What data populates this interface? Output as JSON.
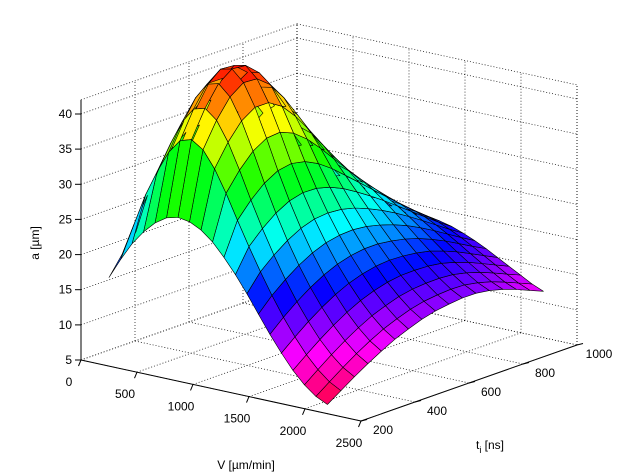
{
  "chart_data": {
    "type": "surface",
    "title": "",
    "xlabel": "V [µm/min]",
    "ylabel_main": "t",
    "ylabel_sub": "i",
    "ylabel_unit": " [ns]",
    "zlabel": "a [µm]",
    "xlim": [
      0,
      2500
    ],
    "ylim": [
      200,
      1000
    ],
    "zlim": [
      5,
      42
    ],
    "xticks": [
      0,
      500,
      1000,
      1500,
      2000,
      2500
    ],
    "yticks": [
      200,
      400,
      600,
      800,
      1000
    ],
    "zticks": [
      5,
      10,
      15,
      20,
      25,
      30,
      35,
      40
    ],
    "xtick_labels": [
      "0",
      "500",
      "1000",
      "1500",
      "2000",
      "2500"
    ],
    "ytick_labels": [
      "200",
      "400",
      "600",
      "800",
      "1000"
    ],
    "ztick_labels": [
      "5",
      "10",
      "15",
      "20",
      "25",
      "30",
      "35",
      "40"
    ],
    "grid": true,
    "colormap": "hsv",
    "x_grid": [
      250,
      352.6,
      455.3,
      557.9,
      660.5,
      763.2,
      865.8,
      968.4,
      1071.1,
      1173.7,
      1276.3,
      1378.9,
      1481.6,
      1584.2,
      1686.8,
      1789.5,
      1892.1,
      1994.7,
      2097.4,
      2200
    ],
    "y_grid": [
      200,
      250,
      300,
      350,
      400,
      450,
      500,
      550,
      600,
      650,
      700,
      750,
      800,
      850,
      900,
      950,
      1000
    ],
    "z_edges": {
      "at_min_t": [
        17.5,
        20.3,
        22.8,
        24.7,
        26.2,
        27.2,
        27.6,
        27.4,
        26.7,
        25.5,
        23.8,
        21.8,
        19.5,
        17.0,
        14.5,
        12.2,
        10.1,
        8.4,
        7.1,
        6.3
      ],
      "at_max_t": [
        13.8,
        14.8,
        15.7,
        16.5,
        17.2,
        17.8,
        18.2,
        18.5,
        18.6,
        18.6,
        18.4,
        18.0,
        17.4,
        16.7,
        15.9,
        15.0,
        14.1,
        13.2,
        12.3,
        11.6
      ],
      "at_min_V": [
        17.5,
        20.2,
        22.6,
        24.6,
        26.1,
        27.0,
        27.3,
        27.0,
        26.2,
        24.9,
        23.3,
        21.5,
        19.7,
        18.0,
        16.4,
        15.0,
        13.8
      ],
      "at_max_V": [
        6.3,
        7.6,
        8.9,
        10.1,
        11.2,
        12.2,
        13.0,
        13.7,
        14.2,
        14.5,
        14.7,
        14.7,
        14.4,
        13.9,
        13.2,
        12.4,
        11.6
      ],
      "peak": 41.5
    }
  }
}
